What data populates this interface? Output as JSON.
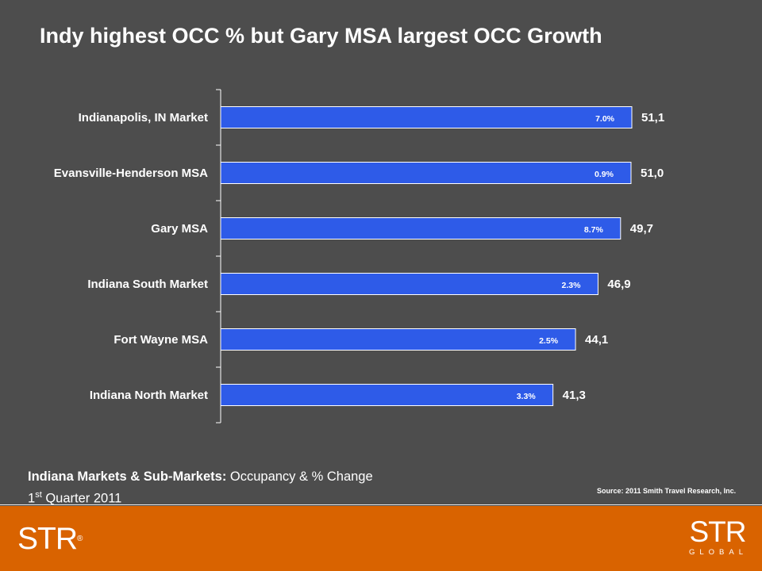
{
  "slide_title": "Indy highest OCC % but Gary MSA largest OCC Growth",
  "subtitle": {
    "bold": "Indiana Markets & Sub-Markets:",
    "normal": " Occupancy & % Change",
    "quarter_number": "1",
    "quarter_suffix": "st",
    "quarter_rest": " Quarter 2011"
  },
  "source": "Source: 2011 Smith Travel Research, Inc.",
  "logos": {
    "left": "STR",
    "left_reg": "®",
    "right": "STR",
    "right_sub": "GLOBAL"
  },
  "colors": {
    "background": "#4d4d4d",
    "bar": "#2e5be8",
    "footer": "#d96300"
  },
  "chart_data": {
    "type": "bar",
    "orientation": "horizontal",
    "categories": [
      "Indianapolis, IN Market",
      "Evansville-Henderson MSA",
      "Gary MSA",
      "Indiana South Market",
      "Fort Wayne MSA",
      "Indiana North Market"
    ],
    "values": [
      51.1,
      51.0,
      49.7,
      46.9,
      44.1,
      41.3
    ],
    "value_labels": [
      "51,1",
      "51,0",
      "49,7",
      "46,9",
      "44,1",
      "41,3"
    ],
    "pct_change_labels": [
      "7.0%",
      "0.9%",
      "8.7%",
      "2.3%",
      "2.5%",
      "3.3%"
    ],
    "xlim": [
      0,
      51.1
    ],
    "axis_visible": false,
    "grid": false,
    "legend": "none"
  }
}
